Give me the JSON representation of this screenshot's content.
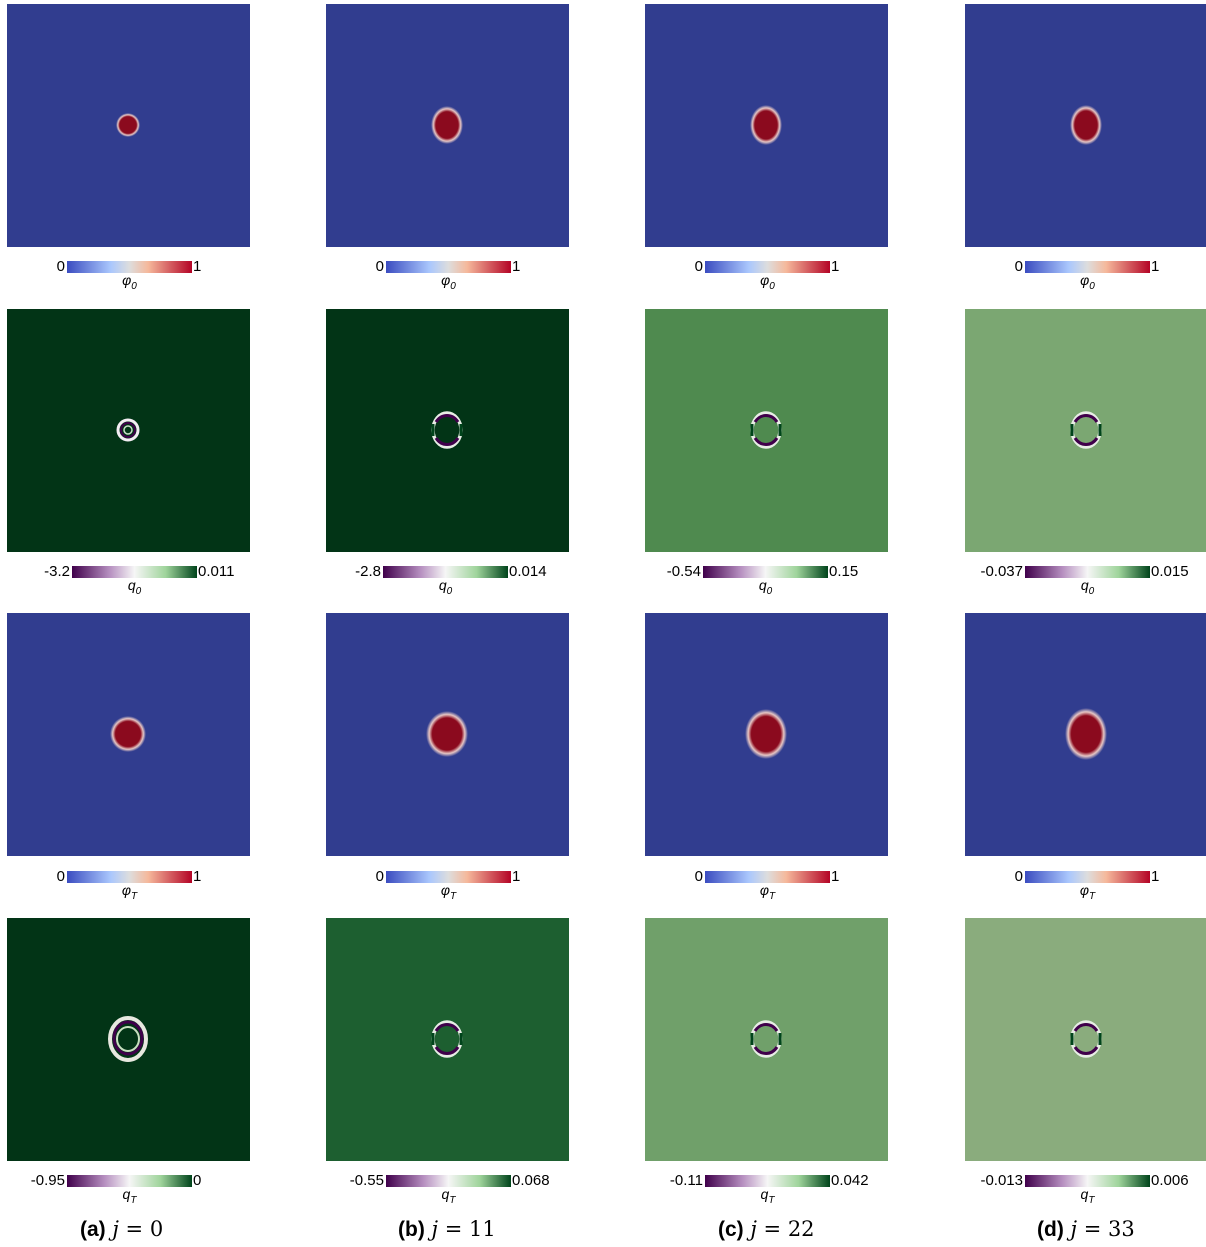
{
  "columns": [
    {
      "tag": "(a)",
      "j": "0"
    },
    {
      "tag": "(b)",
      "j": "11"
    },
    {
      "tag": "(c)",
      "j": "22"
    },
    {
      "tag": "(d)",
      "j": "33"
    }
  ],
  "rows": [
    {
      "field": "phi",
      "sub": "0",
      "symbol": "φ",
      "kind": "phi",
      "colorbar": [
        [
          "0",
          "1"
        ],
        [
          "0",
          "1"
        ],
        [
          "0",
          "1"
        ],
        [
          "0",
          "1"
        ]
      ],
      "background": [
        "#313d8f",
        "#313d8f",
        "#313d8f",
        "#313d8f"
      ]
    },
    {
      "field": "q",
      "sub": "0",
      "symbol": "q",
      "kind": "q",
      "colorbar": [
        [
          "-3.2",
          "0.011"
        ],
        [
          "-2.8",
          "0.014"
        ],
        [
          "-0.54",
          "0.15"
        ],
        [
          "-0.037",
          "0.015"
        ]
      ],
      "background": [
        "#023416",
        "#023416",
        "#4f8a4f",
        "#7ba772"
      ]
    },
    {
      "field": "phi",
      "sub": "T",
      "symbol": "φ",
      "kind": "phi",
      "colorbar": [
        [
          "0",
          "1"
        ],
        [
          "0",
          "1"
        ],
        [
          "0",
          "1"
        ],
        [
          "0",
          "1"
        ]
      ],
      "background": [
        "#313d8f",
        "#313d8f",
        "#313d8f",
        "#313d8f"
      ]
    },
    {
      "field": "q",
      "sub": "T",
      "symbol": "q",
      "kind": "q",
      "colorbar": [
        [
          "-0.95",
          "0"
        ],
        [
          "-0.55",
          "0.068"
        ],
        [
          "-0.11",
          "0.042"
        ],
        [
          "-0.013",
          "0.006"
        ]
      ],
      "background": [
        "#023416",
        "#1d5f30",
        "#70a06a",
        "#8aac7d"
      ]
    }
  ],
  "colors": {
    "phi_blob": "#8b0a1e",
    "phi_low": "#3b4cc0",
    "phi_high": "#b40426",
    "q_low": "#40004b",
    "q_high": "#00441b"
  }
}
